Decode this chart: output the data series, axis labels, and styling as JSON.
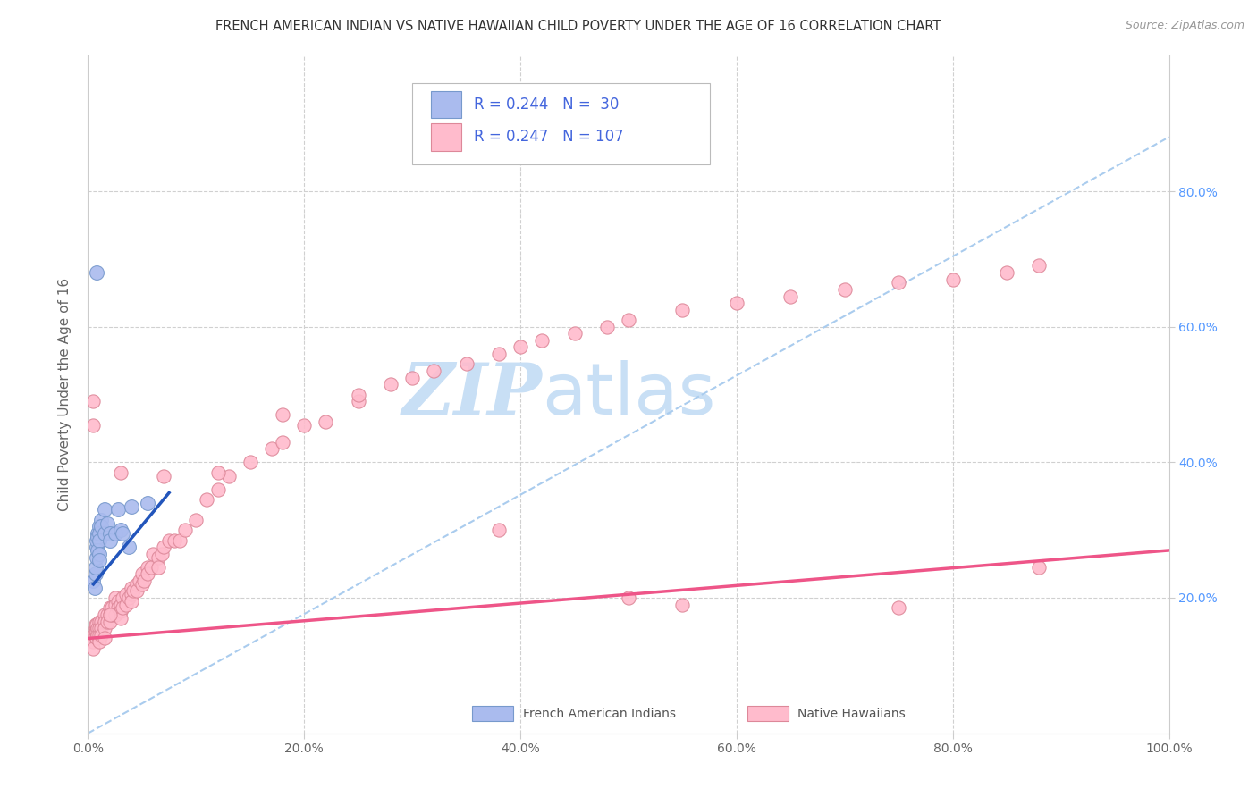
{
  "title": "FRENCH AMERICAN INDIAN VS NATIVE HAWAIIAN CHILD POVERTY UNDER THE AGE OF 16 CORRELATION CHART",
  "source": "Source: ZipAtlas.com",
  "ylabel": "Child Poverty Under the Age of 16",
  "xlim": [
    0,
    1.0
  ],
  "ylim": [
    0,
    1.0
  ],
  "background_color": "#ffffff",
  "grid_color": "#d0d0d0",
  "title_color": "#333333",
  "axis_label_color": "#666666",
  "tick_color": "#666666",
  "right_tick_color": "#5599ff",
  "watermark_zip": "ZIP",
  "watermark_atlas": "atlas",
  "watermark_color": "#c8dff5",
  "blue_R": "0.244",
  "blue_N": "30",
  "pink_R": "0.247",
  "pink_N": "107",
  "legend_text_color": "#4466dd",
  "blue_line_color": "#2255bb",
  "pink_line_color": "#ee5588",
  "dashed_line_color": "#aaccee",
  "blue_scatter_color": "#aabbee",
  "pink_scatter_color": "#ffbbcc",
  "blue_scatter_edge": "#7799cc",
  "pink_scatter_edge": "#dd8899",
  "blue_line_x": [
    0.005,
    0.075
  ],
  "blue_line_y": [
    0.22,
    0.355
  ],
  "pink_line_x": [
    0.0,
    1.0
  ],
  "pink_line_y": [
    0.14,
    0.27
  ],
  "dashed_line_x": [
    0.0,
    1.0
  ],
  "dashed_line_y": [
    0.0,
    0.88
  ],
  "blue_points_x": [
    0.005,
    0.006,
    0.007,
    0.007,
    0.008,
    0.008,
    0.008,
    0.009,
    0.009,
    0.009,
    0.01,
    0.01,
    0.01,
    0.01,
    0.01,
    0.012,
    0.012,
    0.015,
    0.015,
    0.018,
    0.02,
    0.02,
    0.025,
    0.028,
    0.03,
    0.032,
    0.038,
    0.04,
    0.055,
    0.008
  ],
  "blue_points_y": [
    0.225,
    0.215,
    0.235,
    0.245,
    0.26,
    0.275,
    0.285,
    0.295,
    0.29,
    0.27,
    0.305,
    0.295,
    0.285,
    0.265,
    0.255,
    0.315,
    0.305,
    0.33,
    0.295,
    0.31,
    0.295,
    0.285,
    0.295,
    0.33,
    0.3,
    0.295,
    0.275,
    0.335,
    0.34,
    0.68
  ],
  "pink_points_x": [
    0.005,
    0.005,
    0.005,
    0.006,
    0.006,
    0.007,
    0.007,
    0.008,
    0.008,
    0.008,
    0.009,
    0.009,
    0.01,
    0.01,
    0.01,
    0.01,
    0.012,
    0.012,
    0.012,
    0.015,
    0.015,
    0.015,
    0.015,
    0.018,
    0.018,
    0.02,
    0.02,
    0.02,
    0.022,
    0.022,
    0.025,
    0.025,
    0.025,
    0.028,
    0.028,
    0.03,
    0.03,
    0.03,
    0.032,
    0.032,
    0.035,
    0.035,
    0.038,
    0.04,
    0.04,
    0.04,
    0.042,
    0.045,
    0.045,
    0.048,
    0.05,
    0.05,
    0.052,
    0.055,
    0.055,
    0.058,
    0.06,
    0.065,
    0.065,
    0.068,
    0.07,
    0.075,
    0.08,
    0.085,
    0.09,
    0.1,
    0.11,
    0.12,
    0.13,
    0.15,
    0.17,
    0.18,
    0.2,
    0.22,
    0.25,
    0.28,
    0.3,
    0.32,
    0.35,
    0.38,
    0.4,
    0.42,
    0.45,
    0.48,
    0.5,
    0.55,
    0.6,
    0.65,
    0.7,
    0.75,
    0.8,
    0.85,
    0.88,
    0.005,
    0.02,
    0.005,
    0.03,
    0.07,
    0.12,
    0.18,
    0.25,
    0.38,
    0.5,
    0.55,
    0.75,
    0.88
  ],
  "pink_points_y": [
    0.145,
    0.135,
    0.125,
    0.155,
    0.145,
    0.16,
    0.15,
    0.16,
    0.15,
    0.14,
    0.155,
    0.145,
    0.165,
    0.155,
    0.145,
    0.135,
    0.165,
    0.155,
    0.145,
    0.175,
    0.165,
    0.155,
    0.14,
    0.175,
    0.165,
    0.185,
    0.175,
    0.165,
    0.185,
    0.175,
    0.2,
    0.19,
    0.175,
    0.195,
    0.185,
    0.19,
    0.18,
    0.17,
    0.2,
    0.185,
    0.205,
    0.19,
    0.2,
    0.215,
    0.205,
    0.195,
    0.21,
    0.22,
    0.21,
    0.225,
    0.235,
    0.22,
    0.225,
    0.245,
    0.235,
    0.245,
    0.265,
    0.26,
    0.245,
    0.265,
    0.275,
    0.285,
    0.285,
    0.285,
    0.3,
    0.315,
    0.345,
    0.36,
    0.38,
    0.4,
    0.42,
    0.43,
    0.455,
    0.46,
    0.49,
    0.515,
    0.525,
    0.535,
    0.545,
    0.56,
    0.57,
    0.58,
    0.59,
    0.6,
    0.61,
    0.625,
    0.635,
    0.645,
    0.655,
    0.665,
    0.67,
    0.68,
    0.69,
    0.455,
    0.175,
    0.49,
    0.385,
    0.38,
    0.385,
    0.47,
    0.5,
    0.3,
    0.2,
    0.19,
    0.185,
    0.245
  ]
}
